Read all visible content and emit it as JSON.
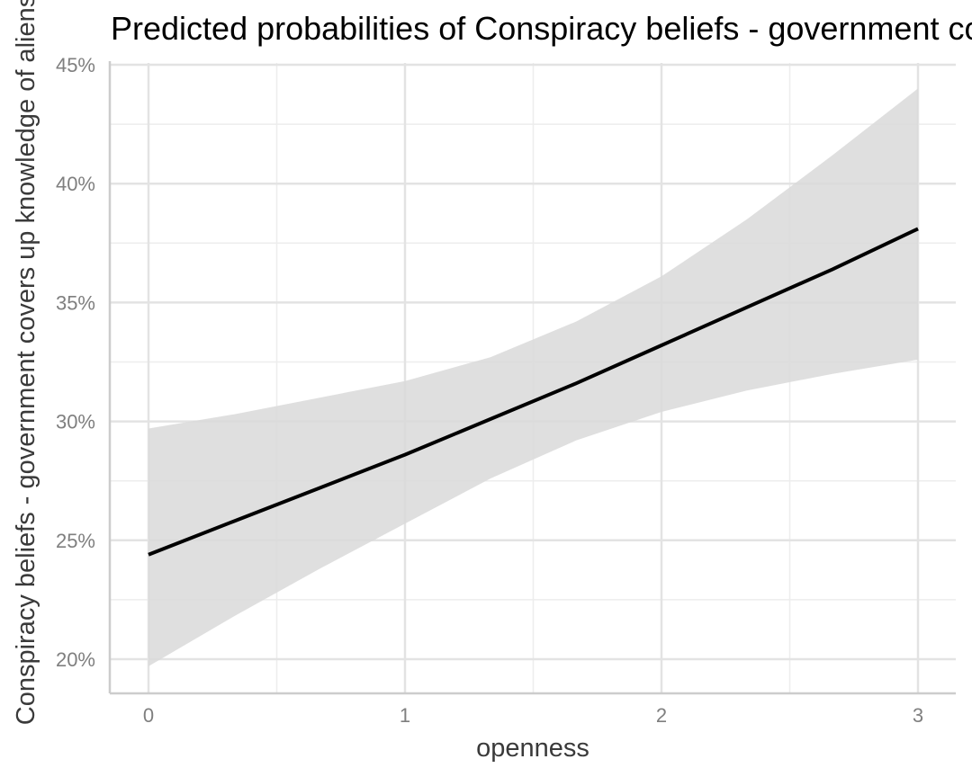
{
  "chart_data": {
    "type": "line",
    "title": "Predicted probabilities of Conspiracy beliefs - government covers up knowledge of aliens",
    "xlabel": "openness",
    "ylabel": "Conspiracy beliefs - government covers up knowledge of aliens",
    "xlim": [
      -0.15,
      3.15
    ],
    "ylim": [
      0.186,
      0.45
    ],
    "x_ticks": [
      0,
      1,
      2,
      3
    ],
    "x_tick_labels": [
      "0",
      "1",
      "2",
      "3"
    ],
    "y_ticks": [
      0.2,
      0.25,
      0.3,
      0.35,
      0.4,
      0.45
    ],
    "y_tick_labels": [
      "20%",
      "25%",
      "30%",
      "35%",
      "40%",
      "45%"
    ],
    "x_minor_ticks": [
      0.5,
      1.5,
      2.5
    ],
    "y_minor_ticks": [
      0.225,
      0.275,
      0.325,
      0.375,
      0.425
    ],
    "grid": true,
    "series": [
      {
        "x": [
          0,
          0.333,
          0.667,
          1.0,
          1.333,
          1.667,
          2.0,
          2.333,
          2.667,
          3.0
        ],
        "values": [
          0.244,
          0.258,
          0.272,
          0.286,
          0.301,
          0.316,
          0.332,
          0.348,
          0.364,
          0.381
        ],
        "ci_low": [
          0.197,
          0.218,
          0.238,
          0.257,
          0.276,
          0.292,
          0.304,
          0.313,
          0.32,
          0.326
        ],
        "ci_high": [
          0.297,
          0.303,
          0.31,
          0.317,
          0.327,
          0.342,
          0.361,
          0.385,
          0.412,
          0.44
        ]
      }
    ],
    "colors": {
      "line": "#000000",
      "ribbon": "#d9d9d9",
      "grid_major": "#e3e3e3",
      "grid_minor": "#ededed",
      "axis": "#cccccc"
    }
  }
}
